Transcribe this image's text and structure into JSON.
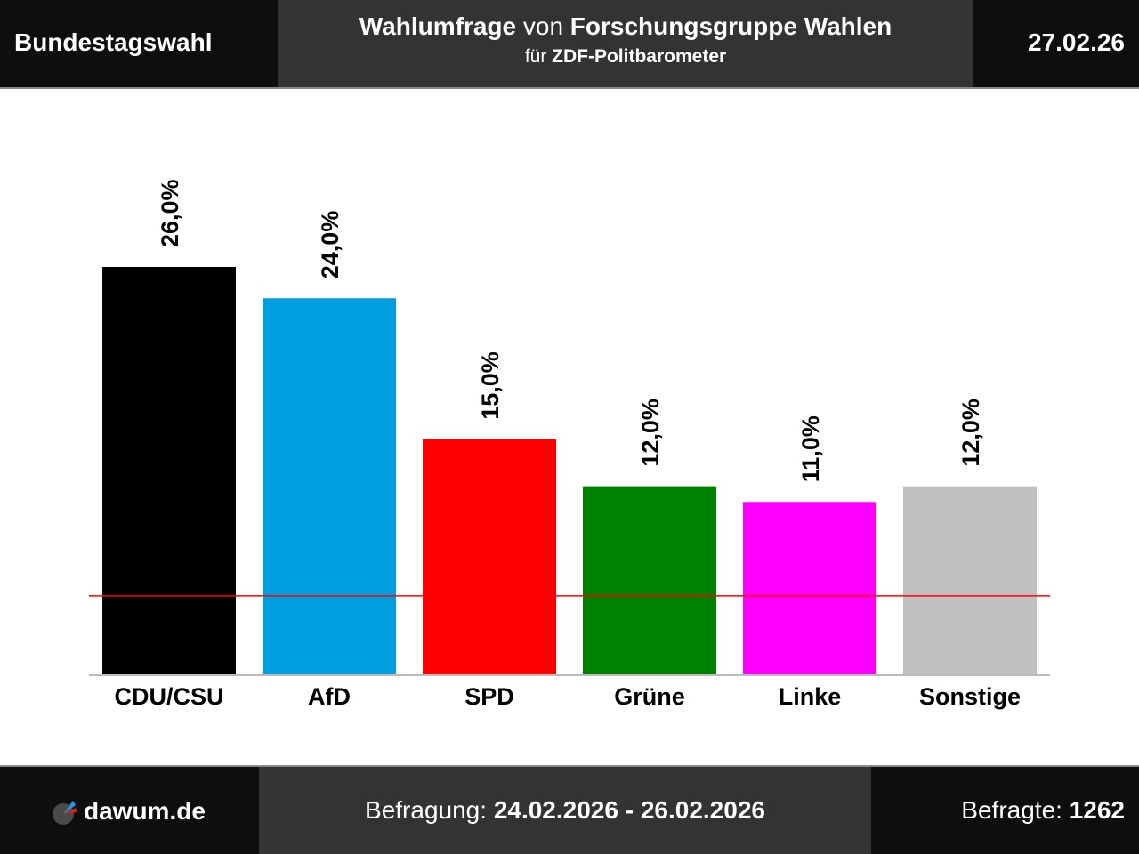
{
  "header": {
    "left": "Bundestagswahl",
    "title_bold1": "Wahlumfrage",
    "title_mid": " von ",
    "title_bold2": "Forschungsgruppe Wahlen",
    "subtitle_pre": "für ",
    "subtitle_bold": "ZDF-Politbarometer",
    "date": "27.02.26"
  },
  "footer": {
    "logo_text": "dawum.de",
    "survey_label": "Befragung: ",
    "survey_range": "24.02.2026 - 26.02.2026",
    "respondents_label": "Befragte: ",
    "respondents_value": "1262"
  },
  "chart_data": {
    "type": "bar",
    "categories": [
      "CDU/CSU",
      "AfD",
      "SPD",
      "Grüne",
      "Linke",
      "Sonstige"
    ],
    "values": [
      26.0,
      24.0,
      15.0,
      12.0,
      11.0,
      12.0
    ],
    "labels": [
      "26,0%",
      "24,0%",
      "15,0%",
      "12,0%",
      "11,0%",
      "12,0%"
    ],
    "colors": [
      "#000000",
      "#009ee0",
      "#ff0000",
      "#008000",
      "#ff00ff",
      "#c0c0c0"
    ],
    "threshold": 5,
    "threshold_color": "#ff0000",
    "ylim": [
      0,
      26
    ]
  }
}
